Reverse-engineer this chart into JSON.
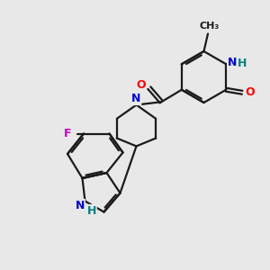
{
  "bg_color": "#e8e8e8",
  "bond_color": "#1a1a1a",
  "bond_width": 1.6,
  "atom_colors": {
    "N": "#0000cc",
    "O": "#ff0000",
    "F": "#cc00cc",
    "C": "#1a1a1a",
    "H": "#008080"
  },
  "font_size": 9.0,
  "font_size_small": 8.0
}
